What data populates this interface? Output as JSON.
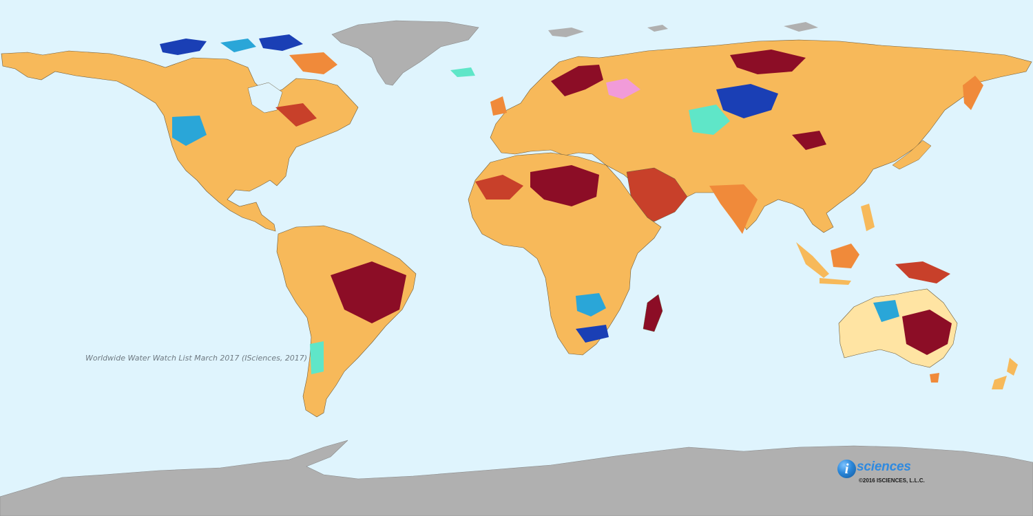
{
  "caption": "Worldwide Water Watch List March 2017 (ISciences, 2017)",
  "logo": {
    "badge_letter": "i",
    "wordmark": "sciences",
    "copyright": "©2016 ISCIENCES, L.L.C."
  },
  "colors": {
    "ocean": "#dff4fd",
    "ice": "#b0b0b0",
    "extreme_deficit": "#8c0d26",
    "severe_deficit": "#c8402a",
    "moderate_deficit": "#f08a3a",
    "abnormal_deficit": "#f7b95a",
    "near_normal": "#ffe4a3",
    "both_surplus_deficit": "#f19bd9",
    "moderate_surplus": "#5fe6c8",
    "severe_surplus": "#2aa6d8",
    "extreme_surplus": "#1a3fb5"
  }
}
